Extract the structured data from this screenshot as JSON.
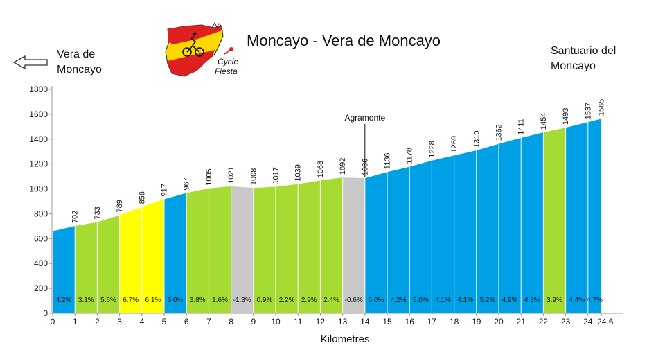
{
  "title": "Moncayo - Vera de Moncayo",
  "start": {
    "line1": "Vera de",
    "line2": "Moncayo"
  },
  "end": {
    "line1": "Santuario del",
    "line2": "Moncayo"
  },
  "logo": {
    "line1": "Cycle",
    "line2": "Fiesta"
  },
  "colors": {
    "blue": "#00a0e6",
    "green": "#a6dc32",
    "yellow": "#ffff00",
    "grey": "#c8c8c8",
    "arrow": "#333333"
  },
  "chart_data": {
    "type": "area",
    "xlabel": "Kilometres",
    "ylabel": "",
    "xlim": [
      0,
      24.6
    ],
    "ylim": [
      0,
      1800
    ],
    "x_ticks": [
      "0",
      "1",
      "2",
      "3",
      "4",
      "5",
      "6",
      "7",
      "8",
      "9",
      "10",
      "11",
      "12",
      "13",
      "14",
      "15",
      "16",
      "17",
      "18",
      "19",
      "20",
      "21",
      "22",
      "23",
      "24",
      "24.6"
    ],
    "y_ticks": [
      "0",
      "200",
      "400",
      "600",
      "800",
      "1000",
      "1200",
      "1400",
      "1600",
      "1800"
    ],
    "km": [
      0,
      1,
      2,
      3,
      4,
      5,
      6,
      7,
      8,
      9,
      10,
      11,
      12,
      13,
      14,
      15,
      16,
      17,
      18,
      19,
      20,
      21,
      22,
      23,
      24,
      24.6
    ],
    "elevation": [
      660,
      702,
      733,
      789,
      856,
      917,
      967,
      1005,
      1021,
      1008,
      1017,
      1039,
      1068,
      1092,
      1086,
      1136,
      1178,
      1228,
      1269,
      1310,
      1362,
      1411,
      1454,
      1493,
      1537,
      1565
    ],
    "elevation_labels": [
      "702",
      "733",
      "789",
      "856",
      "917",
      "967",
      "1005",
      "1021",
      "1008",
      "1017",
      "1039",
      "1068",
      "1092",
      "1086",
      "1136",
      "1178",
      "1228",
      "1269",
      "1310",
      "1362",
      "1411",
      "1454",
      "1493",
      "1537",
      "1565"
    ],
    "gradients": [
      "4.2%",
      "3.1%",
      "5.6%",
      "6.7%",
      "6.1%",
      "5.0%",
      "3.8%",
      "1.6%",
      "-1.3%",
      "0.9%",
      "2.2%",
      "2.9%",
      "2.4%",
      "-0.6%",
      "5.0%",
      "4.2%",
      "5.0%",
      "4.1%",
      "4.1%",
      "5.2%",
      "4.9%",
      "4.3%",
      "3.9%",
      "4.4%",
      "4.7%"
    ],
    "segment_colors": [
      "blue",
      "green",
      "green",
      "yellow",
      "yellow",
      "blue",
      "green",
      "green",
      "grey",
      "green",
      "green",
      "green",
      "green",
      "grey",
      "blue",
      "blue",
      "blue",
      "blue",
      "blue",
      "blue",
      "blue",
      "blue",
      "green",
      "blue",
      "blue"
    ],
    "annotations": [
      {
        "text": "Agramonte",
        "x": 14
      }
    ]
  }
}
